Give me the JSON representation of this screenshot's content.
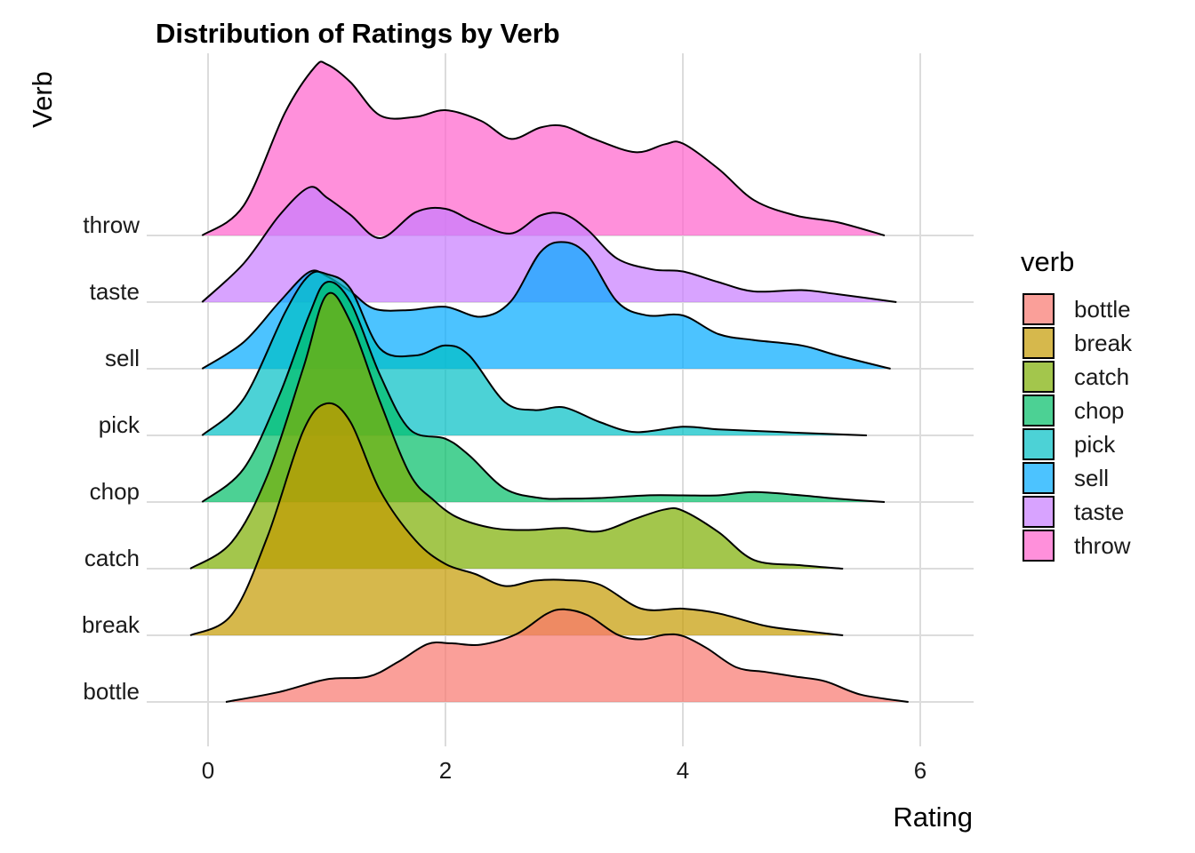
{
  "chart_data": {
    "type": "ridgeline",
    "title": "Distribution of Ratings by Verb",
    "xlabel": "Rating",
    "ylabel": "Verb",
    "xlim": [
      -0.5,
      6.5
    ],
    "x_ticks": [
      0,
      2,
      4,
      6
    ],
    "grid": true,
    "legend": {
      "title": "verb",
      "placement": "right",
      "entries": [
        "bottle",
        "break",
        "catch",
        "chop",
        "pick",
        "sell",
        "taste",
        "throw"
      ]
    },
    "categories": [
      "bottle",
      "break",
      "catch",
      "chop",
      "pick",
      "sell",
      "taste",
      "throw"
    ],
    "series": [
      {
        "name": "bottle",
        "color": "#F8766D",
        "x_range": [
          0.15,
          5.9
        ],
        "points": [
          [
            0.15,
            0.0
          ],
          [
            0.6,
            0.15
          ],
          [
            1.0,
            0.34
          ],
          [
            1.35,
            0.38
          ],
          [
            1.6,
            0.6
          ],
          [
            1.85,
            0.87
          ],
          [
            2.05,
            0.88
          ],
          [
            2.3,
            0.86
          ],
          [
            2.6,
            1.02
          ],
          [
            2.85,
            1.32
          ],
          [
            3.0,
            1.39
          ],
          [
            3.2,
            1.3
          ],
          [
            3.45,
            1.01
          ],
          [
            3.65,
            0.94
          ],
          [
            3.85,
            1.01
          ],
          [
            4.0,
            0.99
          ],
          [
            4.2,
            0.81
          ],
          [
            4.45,
            0.52
          ],
          [
            4.7,
            0.45
          ],
          [
            4.95,
            0.38
          ],
          [
            5.2,
            0.31
          ],
          [
            5.5,
            0.11
          ],
          [
            5.9,
            0.0
          ]
        ]
      },
      {
        "name": "break",
        "color": "#C49A00",
        "x_range": [
          -0.15,
          5.35
        ],
        "points": [
          [
            -0.15,
            0.0
          ],
          [
            0.2,
            0.31
          ],
          [
            0.5,
            1.48
          ],
          [
            0.8,
            3.06
          ],
          [
            1.0,
            3.48
          ],
          [
            1.2,
            3.2
          ],
          [
            1.45,
            2.17
          ],
          [
            1.75,
            1.42
          ],
          [
            2.0,
            1.07
          ],
          [
            2.25,
            0.92
          ],
          [
            2.5,
            0.74
          ],
          [
            2.75,
            0.82
          ],
          [
            3.0,
            0.83
          ],
          [
            3.3,
            0.76
          ],
          [
            3.65,
            0.4
          ],
          [
            4.0,
            0.4
          ],
          [
            4.3,
            0.33
          ],
          [
            4.7,
            0.14
          ],
          [
            5.0,
            0.07
          ],
          [
            5.35,
            0.0
          ]
        ]
      },
      {
        "name": "catch",
        "color": "#7CAE00",
        "x_range": [
          -0.15,
          5.35
        ],
        "points": [
          [
            -0.15,
            0.0
          ],
          [
            0.2,
            0.4
          ],
          [
            0.5,
            1.4
          ],
          [
            0.8,
            3.0
          ],
          [
            1.0,
            4.11
          ],
          [
            1.2,
            3.7
          ],
          [
            1.45,
            2.5
          ],
          [
            1.7,
            1.42
          ],
          [
            1.9,
            1.03
          ],
          [
            2.1,
            0.77
          ],
          [
            2.4,
            0.61
          ],
          [
            2.7,
            0.58
          ],
          [
            3.0,
            0.61
          ],
          [
            3.3,
            0.56
          ],
          [
            3.6,
            0.75
          ],
          [
            3.85,
            0.89
          ],
          [
            4.0,
            0.87
          ],
          [
            4.3,
            0.55
          ],
          [
            4.6,
            0.13
          ],
          [
            5.0,
            0.05
          ],
          [
            5.35,
            0.0
          ]
        ]
      },
      {
        "name": "chop",
        "color": "#00BE67",
        "x_range": [
          -0.05,
          5.7
        ],
        "points": [
          [
            -0.05,
            0.0
          ],
          [
            0.3,
            0.5
          ],
          [
            0.6,
            1.6
          ],
          [
            0.85,
            2.8
          ],
          [
            1.0,
            3.3
          ],
          [
            1.2,
            3.0
          ],
          [
            1.45,
            1.9
          ],
          [
            1.7,
            1.09
          ],
          [
            2.0,
            0.95
          ],
          [
            2.2,
            0.7
          ],
          [
            2.5,
            0.2
          ],
          [
            2.8,
            0.06
          ],
          [
            3.0,
            0.05
          ],
          [
            3.3,
            0.06
          ],
          [
            3.7,
            0.1
          ],
          [
            4.0,
            0.1
          ],
          [
            4.3,
            0.1
          ],
          [
            4.6,
            0.15
          ],
          [
            5.0,
            0.1
          ],
          [
            5.3,
            0.05
          ],
          [
            5.7,
            0.0
          ]
        ]
      },
      {
        "name": "pick",
        "color": "#00BFC4",
        "x_range": [
          -0.05,
          5.55
        ],
        "points": [
          [
            -0.05,
            0.0
          ],
          [
            0.3,
            0.55
          ],
          [
            0.65,
            1.85
          ],
          [
            0.85,
            2.4
          ],
          [
            1.0,
            2.42
          ],
          [
            1.2,
            2.2
          ],
          [
            1.45,
            1.3
          ],
          [
            1.75,
            1.2
          ],
          [
            2.0,
            1.35
          ],
          [
            2.2,
            1.2
          ],
          [
            2.5,
            0.5
          ],
          [
            2.75,
            0.38
          ],
          [
            3.0,
            0.42
          ],
          [
            3.3,
            0.2
          ],
          [
            3.6,
            0.05
          ],
          [
            4.0,
            0.13
          ],
          [
            4.3,
            0.09
          ],
          [
            4.7,
            0.06
          ],
          [
            5.1,
            0.03
          ],
          [
            5.55,
            0.0
          ]
        ]
      },
      {
        "name": "sell",
        "color": "#00A9FF",
        "x_range": [
          -0.05,
          5.75
        ],
        "points": [
          [
            -0.05,
            0.0
          ],
          [
            0.3,
            0.4
          ],
          [
            0.6,
            1.0
          ],
          [
            0.85,
            1.45
          ],
          [
            1.0,
            1.39
          ],
          [
            1.2,
            1.16
          ],
          [
            1.4,
            0.9
          ],
          [
            1.7,
            0.88
          ],
          [
            2.0,
            0.93
          ],
          [
            2.3,
            0.78
          ],
          [
            2.55,
            1.01
          ],
          [
            2.8,
            1.75
          ],
          [
            3.0,
            1.9
          ],
          [
            3.2,
            1.7
          ],
          [
            3.45,
            1.0
          ],
          [
            3.7,
            0.8
          ],
          [
            4.0,
            0.8
          ],
          [
            4.3,
            0.52
          ],
          [
            4.6,
            0.43
          ],
          [
            5.0,
            0.35
          ],
          [
            5.3,
            0.2
          ],
          [
            5.75,
            0.0
          ]
        ]
      },
      {
        "name": "taste",
        "color": "#C77CFF",
        "x_range": [
          -0.05,
          5.8
        ],
        "points": [
          [
            -0.05,
            0.0
          ],
          [
            0.3,
            0.58
          ],
          [
            0.6,
            1.3
          ],
          [
            0.85,
            1.72
          ],
          [
            1.0,
            1.57
          ],
          [
            1.2,
            1.31
          ],
          [
            1.45,
            0.96
          ],
          [
            1.75,
            1.35
          ],
          [
            2.0,
            1.4
          ],
          [
            2.25,
            1.2
          ],
          [
            2.55,
            1.03
          ],
          [
            2.8,
            1.3
          ],
          [
            3.0,
            1.32
          ],
          [
            3.2,
            1.08
          ],
          [
            3.45,
            0.65
          ],
          [
            3.75,
            0.49
          ],
          [
            4.0,
            0.46
          ],
          [
            4.3,
            0.3
          ],
          [
            4.6,
            0.16
          ],
          [
            5.0,
            0.18
          ],
          [
            5.3,
            0.12
          ],
          [
            5.8,
            0.0
          ]
        ]
      },
      {
        "name": "throw",
        "color": "#FF61CC",
        "x_range": [
          -0.05,
          5.7
        ],
        "points": [
          [
            -0.05,
            0.0
          ],
          [
            0.3,
            0.45
          ],
          [
            0.65,
            1.85
          ],
          [
            0.9,
            2.53
          ],
          [
            1.0,
            2.57
          ],
          [
            1.2,
            2.3
          ],
          [
            1.45,
            1.8
          ],
          [
            1.75,
            1.78
          ],
          [
            2.0,
            1.88
          ],
          [
            2.3,
            1.72
          ],
          [
            2.55,
            1.45
          ],
          [
            2.8,
            1.62
          ],
          [
            3.0,
            1.64
          ],
          [
            3.25,
            1.45
          ],
          [
            3.6,
            1.25
          ],
          [
            3.85,
            1.37
          ],
          [
            4.0,
            1.38
          ],
          [
            4.3,
            1.0
          ],
          [
            4.6,
            0.53
          ],
          [
            4.95,
            0.3
          ],
          [
            5.3,
            0.2
          ],
          [
            5.7,
            0.0
          ]
        ]
      }
    ]
  }
}
